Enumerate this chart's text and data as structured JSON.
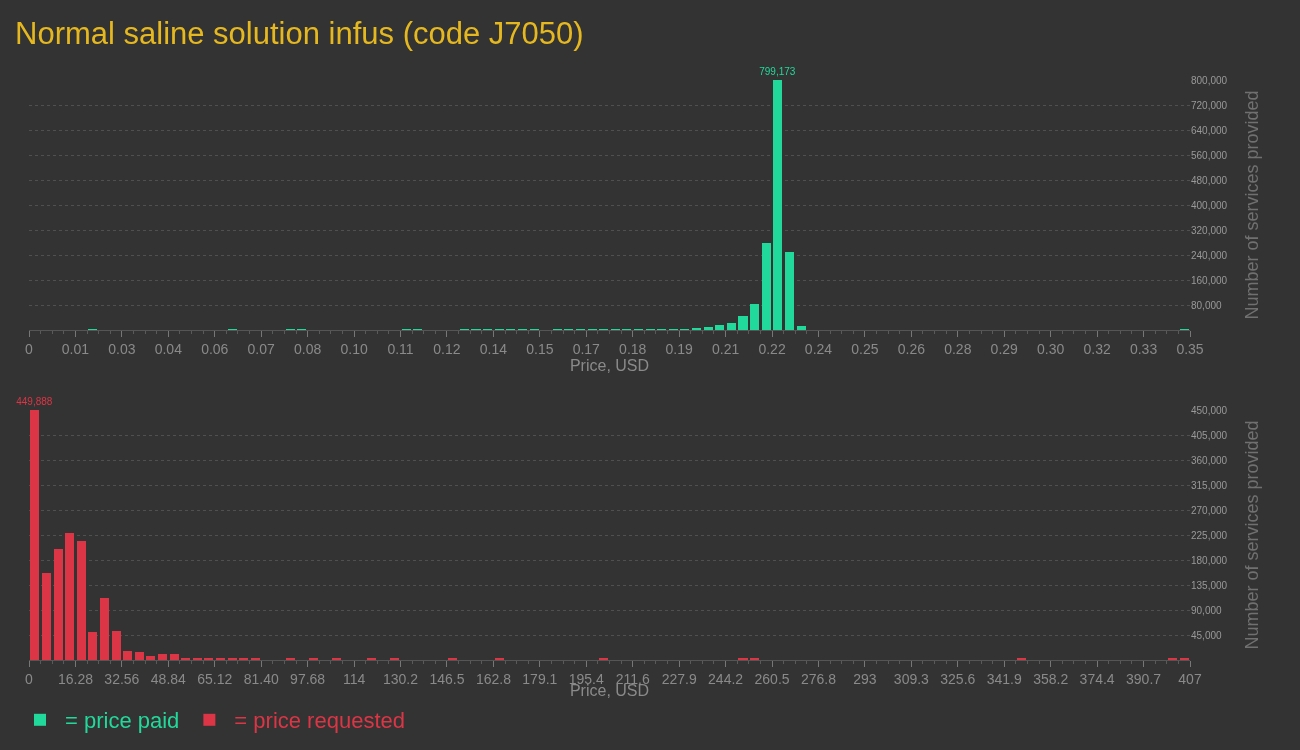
{
  "chart_data": [
    {
      "type": "histogram",
      "title": "Normal saline solution infus (code J7050)",
      "xlabel": "Price, USD",
      "ylabel": "Number of services provided",
      "bins": [
        0,
        0.00346,
        0.00692,
        0.01038,
        0.01384,
        0.0173,
        0.02076,
        0.02422,
        0.02768,
        0.03114,
        0.0346,
        0.03806,
        0.04152,
        0.04498,
        0.04844,
        0.0519,
        0.05536,
        0.05882,
        0.06228,
        0.06574,
        0.0692,
        0.07266,
        0.07612,
        0.07958,
        0.08304,
        0.0865,
        0.08996,
        0.09342,
        0.09688,
        0.10034,
        0.1038,
        0.10726,
        0.11072,
        0.11418,
        0.11764,
        0.1211,
        0.12456,
        0.12802,
        0.13148,
        0.13494,
        0.1384,
        0.14186,
        0.14532,
        0.14878,
        0.15224,
        0.1557,
        0.15916,
        0.16262,
        0.16608,
        0.16954,
        0.173,
        0.17646,
        0.17992,
        0.18338,
        0.18684,
        0.1903,
        0.19376,
        0.19722,
        0.20068,
        0.20414,
        0.2076,
        0.21106,
        0.21452,
        0.21798,
        0.22144,
        0.2249,
        0.22836,
        0.23182,
        0.23528,
        0.23874,
        0.2422,
        0.24566,
        0.24912,
        0.25258,
        0.25604,
        0.2595,
        0.26296,
        0.26642,
        0.26988,
        0.27334,
        0.2768,
        0.28026,
        0.28372,
        0.28718,
        0.29064,
        0.2941,
        0.29756,
        0.30102,
        0.30448,
        0.30794,
        0.3114,
        0.31486,
        0.31832,
        0.32178,
        0.32524,
        0.3287,
        0.33216,
        0.33562,
        0.33908,
        0.34254,
        0.346
      ],
      "series": [
        {
          "name": "= price paid",
          "color": "#21d99b",
          "values": [
            0,
            0,
            0,
            0,
            0,
            3000,
            0,
            0,
            0,
            0,
            0,
            0,
            0,
            0,
            0,
            0,
            0,
            3000,
            0,
            0,
            0,
            0,
            3000,
            3000,
            0,
            0,
            0,
            0,
            0,
            0,
            0,
            0,
            3000,
            3000,
            0,
            0,
            0,
            3000,
            3000,
            3000,
            3000,
            3000,
            3000,
            3000,
            0,
            3000,
            3000,
            3000,
            3000,
            3000,
            3000,
            3000,
            3000,
            3000,
            3000,
            3000,
            3000,
            4000,
            11000,
            17000,
            24000,
            46000,
            84000,
            280000,
            799173,
            251000,
            14000,
            0,
            0,
            0,
            0,
            0,
            0,
            0,
            0,
            0,
            0,
            0,
            0,
            0,
            0,
            0,
            0,
            0,
            0,
            0,
            0,
            0,
            0,
            0,
            0,
            0,
            0,
            0,
            0,
            0,
            0,
            0,
            0,
            3000
          ],
          "value_labels": [
            null,
            null,
            null,
            null,
            null,
            null,
            null,
            null,
            null,
            null,
            null,
            null,
            null,
            null,
            null,
            null,
            null,
            null,
            null,
            null,
            null,
            null,
            null,
            null,
            null,
            null,
            null,
            null,
            null,
            null,
            null,
            null,
            null,
            null,
            null,
            null,
            null,
            null,
            null,
            null,
            null,
            null,
            null,
            null,
            null,
            null,
            null,
            null,
            null,
            null,
            null,
            null,
            null,
            null,
            null,
            null,
            null,
            null,
            null,
            null,
            null,
            null,
            null,
            null,
            "799,173",
            null,
            null,
            null,
            null,
            null,
            null,
            null,
            null,
            null,
            null,
            null,
            null,
            null,
            null,
            null,
            null,
            null,
            null,
            null,
            null,
            null,
            null,
            null,
            null,
            null,
            null,
            null,
            null,
            null,
            null,
            null,
            null,
            null,
            null,
            null
          ]
        }
      ],
      "xlim": [
        0,
        0.346
      ],
      "xticks": [
        0,
        {
          "value": 0.01384,
          "label": "0.01"
        },
        {
          "value": 0.02768,
          "label": "0.03"
        },
        {
          "value": 0.04152,
          "label": "0.04"
        },
        {
          "value": 0.05536,
          "label": "0.06"
        },
        {
          "value": 0.0692,
          "label": "0.07"
        },
        {
          "value": 0.08304,
          "label": "0.08"
        },
        {
          "value": 0.09688,
          "label": "0.10"
        },
        {
          "value": 0.11072,
          "label": "0.11"
        },
        {
          "value": 0.12456,
          "label": "0.12"
        },
        {
          "value": 0.1384,
          "label": "0.14"
        },
        {
          "value": 0.15224,
          "label": "0.15"
        },
        {
          "value": 0.16608,
          "label": "0.17"
        },
        {
          "value": 0.17992,
          "label": "0.18"
        },
        {
          "value": 0.19376,
          "label": "0.19"
        },
        {
          "value": 0.2076,
          "label": "0.21"
        },
        {
          "value": 0.22144,
          "label": "0.22"
        },
        {
          "value": 0.23528,
          "label": "0.24"
        },
        {
          "value": 0.24912,
          "label": "0.25"
        },
        {
          "value": 0.26296,
          "label": "0.26"
        },
        {
          "value": 0.2768,
          "label": "0.28"
        },
        {
          "value": 0.29064,
          "label": "0.29"
        },
        {
          "value": 0.30448,
          "label": "0.30"
        },
        {
          "value": 0.31832,
          "label": "0.32"
        },
        {
          "value": 0.33216,
          "label": "0.33"
        },
        {
          "value": 0.346,
          "label": "0.35"
        }
      ],
      "ylim": [
        0,
        800000
      ],
      "yticks": [
        {
          "value": 80000,
          "label": "80,000"
        },
        {
          "value": 160000,
          "label": "160,000"
        },
        {
          "value": 240000,
          "label": "240,000"
        },
        {
          "value": 320000,
          "label": "320,000"
        },
        {
          "value": 400000,
          "label": "400,000"
        },
        {
          "value": 480000,
          "label": "480,000"
        },
        {
          "value": 560000,
          "label": "560,000"
        },
        {
          "value": 640000,
          "label": "640,000"
        },
        {
          "value": 720000,
          "label": "720,000"
        },
        {
          "value": 800000,
          "label": "800,000"
        }
      ],
      "grid": "y",
      "legend": "bottom left"
    },
    {
      "type": "histogram",
      "xlabel": "Price, USD",
      "ylabel": "Number of services provided",
      "bins": [
        0,
        4.07,
        8.14,
        12.21,
        16.28,
        20.35,
        24.42,
        28.49,
        32.56,
        36.63,
        40.7,
        44.77,
        48.84,
        52.91,
        56.98,
        61.05,
        65.12,
        69.19,
        73.26,
        77.33,
        81.4,
        85.47,
        89.54,
        93.61,
        97.68,
        101.75,
        105.82,
        109.89,
        113.96,
        118.03,
        122.1,
        126.17,
        130.24,
        134.31,
        138.38,
        142.45,
        146.52,
        150.59,
        154.66,
        158.73,
        162.8,
        166.87,
        170.94,
        175.01,
        179.08,
        183.15,
        187.22,
        191.29,
        195.36,
        199.43,
        203.5,
        207.57,
        211.64,
        215.71,
        219.78,
        223.85,
        227.92,
        231.99,
        236.06,
        240.13,
        244.2,
        248.27,
        252.34,
        256.41,
        260.48,
        264.55,
        268.62,
        272.69,
        276.76,
        280.83,
        284.9,
        288.97,
        293.04,
        297.11,
        301.18,
        305.25,
        309.32,
        313.39,
        317.46,
        321.53,
        325.6,
        329.67,
        333.74,
        337.81,
        341.88,
        345.95,
        350.02,
        354.09,
        358.16,
        362.23,
        366.3,
        370.37,
        374.44,
        378.51,
        382.58,
        386.65,
        390.72,
        394.79,
        398.86,
        402.93,
        407
      ],
      "series": [
        {
          "name": "= price requested",
          "color": "#dc3545",
          "values": [
            449888,
            157000,
            199000,
            229000,
            215000,
            51000,
            112000,
            53000,
            17000,
            15000,
            8000,
            10000,
            11000,
            2000,
            4000,
            2000,
            2000,
            2000,
            3000,
            2000,
            0,
            0,
            2000,
            0,
            3000,
            0,
            2000,
            0,
            0,
            2000,
            0,
            2000,
            0,
            0,
            0,
            0,
            2000,
            0,
            0,
            0,
            2000,
            0,
            0,
            0,
            0,
            0,
            0,
            0,
            0,
            2000,
            0,
            0,
            0,
            0,
            0,
            0,
            0,
            0,
            0,
            0,
            0,
            2000,
            2000,
            0,
            0,
            0,
            0,
            0,
            0,
            0,
            0,
            0,
            0,
            0,
            0,
            0,
            0,
            0,
            0,
            0,
            0,
            0,
            0,
            0,
            0,
            2000,
            0,
            0,
            0,
            0,
            0,
            0,
            0,
            0,
            0,
            0,
            0,
            0,
            2000,
            2000
          ],
          "value_labels": [
            "449,888",
            null,
            null,
            null,
            null,
            null,
            null,
            null,
            null,
            null,
            null,
            null,
            null,
            null,
            null,
            null,
            null,
            null,
            null,
            null,
            null,
            null,
            null,
            null,
            null,
            null,
            null,
            null,
            null,
            null,
            null,
            null,
            null,
            null,
            null,
            null,
            null,
            null,
            null,
            null,
            null,
            null,
            null,
            null,
            null,
            null,
            null,
            null,
            null,
            null,
            null,
            null,
            null,
            null,
            null,
            null,
            null,
            null,
            null,
            null,
            null,
            null,
            null,
            null,
            null,
            null,
            null,
            null,
            null,
            null,
            null,
            null,
            null,
            null,
            null,
            null,
            null,
            null,
            null,
            null,
            null,
            null,
            null,
            null,
            null,
            null,
            null,
            null,
            null,
            null,
            null,
            null,
            null,
            null,
            null,
            null,
            null,
            null,
            null,
            null
          ]
        }
      ],
      "xlim": [
        0,
        407
      ],
      "xticks": [
        0,
        16.28,
        32.56,
        48.84,
        65.12,
        {
          "value": 81.4,
          "label": "81.40"
        },
        97.68,
        {
          "value": 113.96,
          "label": "114"
        },
        {
          "value": 130.24,
          "label": "130.2"
        },
        {
          "value": 146.52,
          "label": "146.5"
        },
        162.8,
        {
          "value": 179.08,
          "label": "179.1"
        },
        {
          "value": 195.36,
          "label": "195.4"
        },
        {
          "value": 211.64,
          "label": "211.6"
        },
        {
          "value": 227.92,
          "label": "227.9"
        },
        244.2,
        {
          "value": 260.48,
          "label": "260.5"
        },
        {
          "value": 276.76,
          "label": "276.8"
        },
        {
          "value": 293.04,
          "label": "293"
        },
        {
          "value": 309.32,
          "label": "309.3"
        },
        325.6,
        {
          "value": 341.88,
          "label": "341.9"
        },
        {
          "value": 358.16,
          "label": "358.2"
        },
        {
          "value": 374.44,
          "label": "374.4"
        },
        {
          "value": 390.72,
          "label": "390.7"
        },
        407
      ],
      "ylim": [
        0,
        450000
      ],
      "yticks": [
        {
          "value": 45000,
          "label": "45,000"
        },
        {
          "value": 90000,
          "label": "90,000"
        },
        {
          "value": 135000,
          "label": "135,000"
        },
        {
          "value": 180000,
          "label": "180,000"
        },
        {
          "value": 225000,
          "label": "225,000"
        },
        {
          "value": 270000,
          "label": "270,000"
        },
        {
          "value": 315000,
          "label": "315,000"
        },
        {
          "value": 360000,
          "label": "360,000"
        },
        {
          "value": 405000,
          "label": "405,000"
        },
        {
          "value": 450000,
          "label": "450,000"
        }
      ],
      "grid": "y",
      "legend": "bottom left"
    }
  ]
}
